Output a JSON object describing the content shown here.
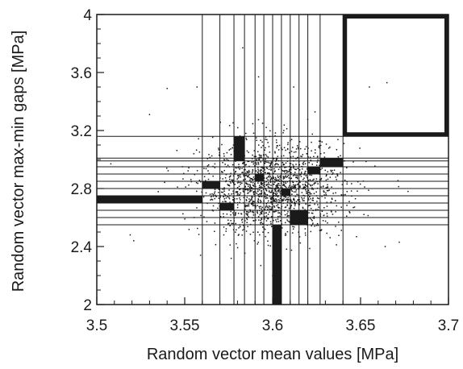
{
  "chart_data": {
    "type": "scatter",
    "title": "",
    "xlabel": "Random vector mean values [MPa]",
    "ylabel": "Random vector max-min gaps [MPa]",
    "xlim": [
      3.5,
      3.7
    ],
    "ylim": [
      2.0,
      4.0
    ],
    "x_ticks": [
      3.5,
      3.55,
      3.6,
      3.65,
      3.7
    ],
    "x_tick_labels": [
      "3.5",
      "3.55",
      "3.6",
      "3.65",
      "3.7"
    ],
    "y_ticks": [
      2.0,
      2.4,
      2.8,
      3.2,
      3.6,
      4.0
    ],
    "y_tick_labels": [
      "2",
      "2.4",
      "2.8",
      "3.2",
      "3.6",
      "4"
    ],
    "vertical_lines_x": [
      3.56,
      3.57,
      3.578,
      3.584,
      3.59,
      3.595,
      3.6,
      3.605,
      3.61,
      3.615,
      3.62,
      3.627,
      3.64
    ],
    "horizontal_lines_y": [
      2.55,
      2.6,
      2.65,
      2.7,
      2.75,
      2.8,
      2.85,
      2.9,
      2.95,
      2.99,
      3.01,
      3.16
    ],
    "highlight_cells": [
      {
        "x": [
          3.64,
          3.7
        ],
        "y": [
          3.16,
          4.0
        ],
        "style": "outline"
      },
      {
        "x": [
          3.5,
          3.56
        ],
        "y": [
          2.7,
          2.75
        ],
        "style": "filled"
      },
      {
        "x": [
          3.56,
          3.57
        ],
        "y": [
          2.8,
          2.85
        ],
        "style": "filled"
      },
      {
        "x": [
          3.578,
          3.584
        ],
        "y": [
          2.99,
          3.16
        ],
        "style": "filled"
      },
      {
        "x": [
          3.59,
          3.595
        ],
        "y": [
          2.85,
          2.9
        ],
        "style": "filled"
      },
      {
        "x": [
          3.6,
          3.605
        ],
        "y": [
          2.0,
          2.55
        ],
        "style": "filled"
      },
      {
        "x": [
          3.61,
          3.62
        ],
        "y": [
          2.55,
          2.65
        ],
        "style": "filled"
      },
      {
        "x": [
          3.62,
          3.627
        ],
        "y": [
          2.9,
          2.95
        ],
        "style": "filled"
      },
      {
        "x": [
          3.627,
          3.64
        ],
        "y": [
          2.95,
          3.01
        ],
        "style": "filled"
      },
      {
        "x": [
          3.57,
          3.578
        ],
        "y": [
          2.65,
          2.7
        ],
        "style": "filled"
      },
      {
        "x": [
          3.605,
          3.61
        ],
        "y": [
          2.75,
          2.8
        ],
        "style": "filled"
      }
    ],
    "point_cloud": {
      "count": 1600,
      "x_mean": 3.6,
      "x_std": 0.02,
      "y_mean": 2.8,
      "y_std": 0.16
    },
    "outlier_points": [
      {
        "x": 3.583,
        "y": 3.77
      },
      {
        "x": 3.519,
        "y": 2.48
      },
      {
        "x": 3.53,
        "y": 3.31
      },
      {
        "x": 3.54,
        "y": 3.49
      },
      {
        "x": 3.557,
        "y": 3.5
      },
      {
        "x": 3.592,
        "y": 3.57
      },
      {
        "x": 3.612,
        "y": 3.5
      },
      {
        "x": 3.655,
        "y": 3.5
      },
      {
        "x": 3.665,
        "y": 3.53
      },
      {
        "x": 3.672,
        "y": 2.43
      },
      {
        "x": 3.664,
        "y": 2.4
      },
      {
        "x": 3.521,
        "y": 2.44
      },
      {
        "x": 3.508,
        "y": 2.97
      },
      {
        "x": 3.677,
        "y": 2.78
      },
      {
        "x": 3.559,
        "y": 2.34
      },
      {
        "x": 3.6,
        "y": 2.2
      }
    ],
    "grid": false,
    "legend": "none",
    "colors": {
      "axes": "#1a1a1a",
      "points": "#1a1a1a",
      "lines": "#1a1a1a"
    }
  }
}
